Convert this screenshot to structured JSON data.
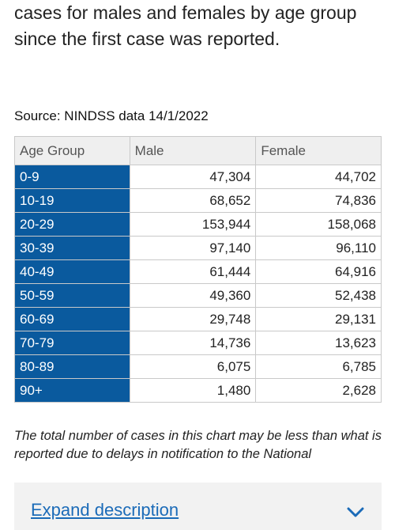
{
  "intro": {
    "text": "cases for males and females by age group since the first case was reported."
  },
  "source": "Source: NINDSS data 14/1/2022",
  "table": {
    "headers": [
      "Age Group",
      "Male",
      "Female"
    ],
    "rows": [
      [
        "0-9",
        "47,304",
        "44,702"
      ],
      [
        "10-19",
        "68,652",
        "74,836"
      ],
      [
        "20-29",
        "153,944",
        "158,068"
      ],
      [
        "30-39",
        "97,140",
        "96,110"
      ],
      [
        "40-49",
        "61,444",
        "64,916"
      ],
      [
        "50-59",
        "49,360",
        "52,438"
      ],
      [
        "60-69",
        "29,748",
        "29,131"
      ],
      [
        "70-79",
        "14,736",
        "13,623"
      ],
      [
        "80-89",
        "6,075",
        "6,785"
      ],
      [
        "90+",
        "1,480",
        "2,628"
      ]
    ]
  },
  "note": "The total number of cases in this chart may be less than what is reported due to delays in notification to the National",
  "expand": {
    "label": "Expand description",
    "icon": "chevron-down-icon"
  },
  "colors": {
    "age_cell_bg": "#0a5a9e",
    "link": "#1b6bb8"
  }
}
